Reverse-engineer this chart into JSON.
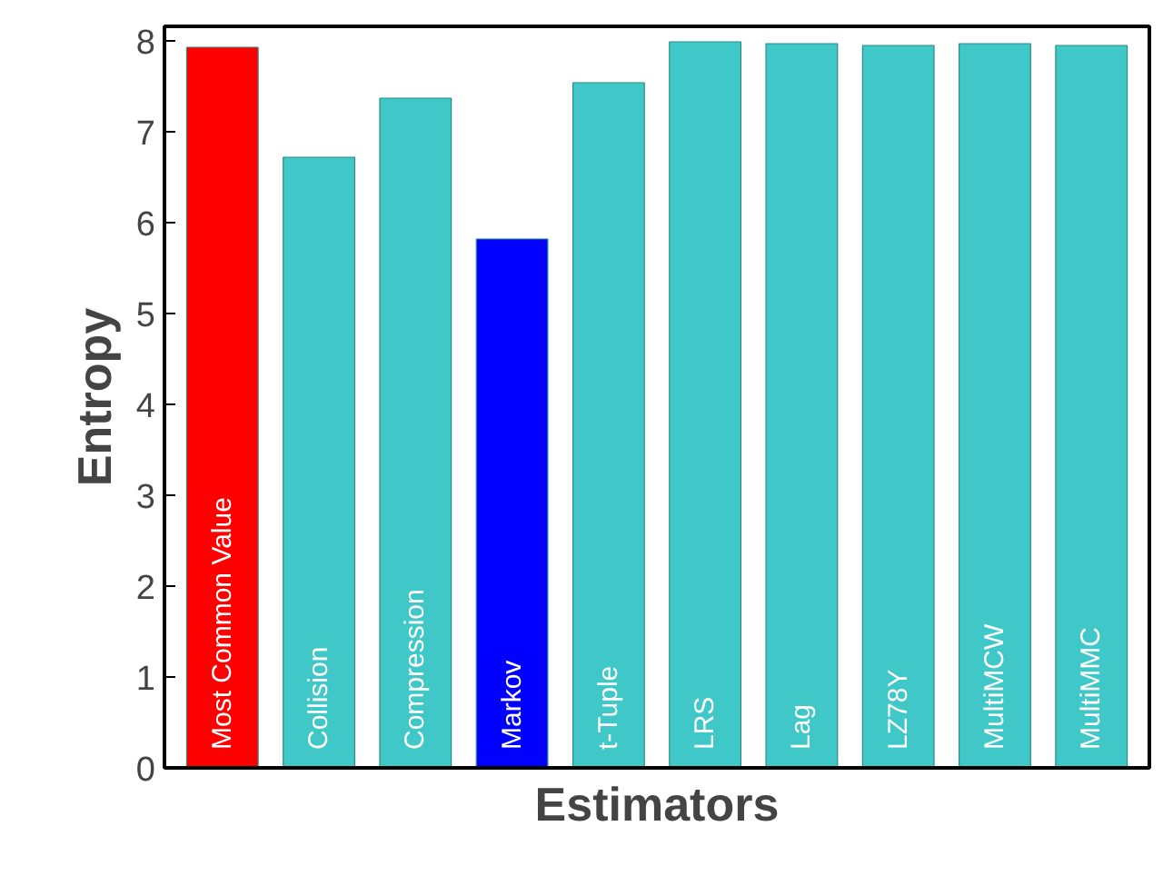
{
  "chart_data": {
    "type": "bar",
    "xlabel": "Estimators",
    "ylabel": "Entropy",
    "categories": [
      "Most Common Value",
      "Collision",
      "Compression",
      "Markov",
      "t-Tuple",
      "LRS",
      "Lag",
      "LZ78Y",
      "MultiMCW",
      "MultiMMC"
    ],
    "values": [
      7.93,
      6.72,
      7.37,
      5.82,
      7.54,
      7.99,
      7.97,
      7.95,
      7.97,
      7.95
    ],
    "colors": [
      "#ff0000",
      "#40c8c8",
      "#40c8c8",
      "#0000ff",
      "#40c8c8",
      "#40c8c8",
      "#40c8c8",
      "#40c8c8",
      "#40c8c8",
      "#40c8c8"
    ],
    "ylim": [
      0,
      8.16
    ],
    "yticks": [
      0,
      1,
      2,
      3,
      4,
      5,
      6,
      7,
      8
    ],
    "grid": false
  }
}
